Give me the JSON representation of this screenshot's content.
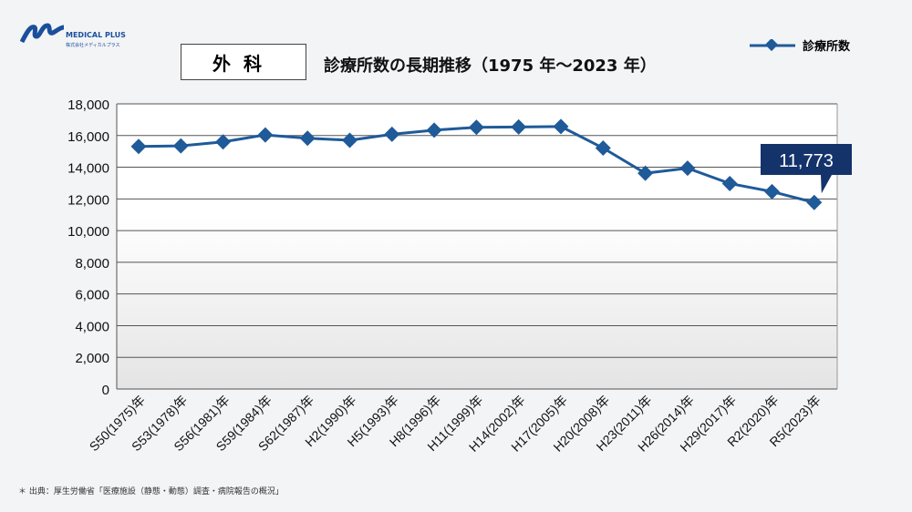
{
  "logo": {
    "name": "MEDICAL PLUS",
    "sub": "株式会社メディカルプラス"
  },
  "tag": "外科",
  "title": "診療所数の長期推移（1975 年～2023 年）",
  "source": "＊ 出典：厚生労働省「医療施設（静態・動態）調査・病院報告の概況」",
  "colors": {
    "line": "#1f5a99",
    "callout": "#14336b"
  },
  "chart_data": {
    "type": "line",
    "title": "診療所数の長期推移（1975 年～2023 年）",
    "categories": [
      "S50(1975)年",
      "S53(1978)年",
      "S56(1981)年",
      "S59(1984)年",
      "S62(1987)年",
      "H2(1990)年",
      "H5(1993)年",
      "H8(1996)年",
      "H11(1999)年",
      "H14(2002)年",
      "H17(2005)年",
      "H20(2008)年",
      "H23(2011)年",
      "H26(2014)年",
      "H29(2017)年",
      "R2(2020)年",
      "R5(2023)年"
    ],
    "series": [
      {
        "name": "診療所数",
        "values": [
          15310,
          15350,
          15600,
          16040,
          15830,
          15700,
          16080,
          16340,
          16520,
          16540,
          16570,
          15210,
          13620,
          13940,
          12970,
          12460,
          11773
        ]
      }
    ],
    "ylim": [
      0,
      18000
    ],
    "yticks": [
      "0",
      "2,000",
      "4,000",
      "6,000",
      "8,000",
      "10,000",
      "12,000",
      "14,000",
      "16,000",
      "18,000"
    ],
    "grid": true,
    "legend": "top-right",
    "annotation": "11,773"
  }
}
